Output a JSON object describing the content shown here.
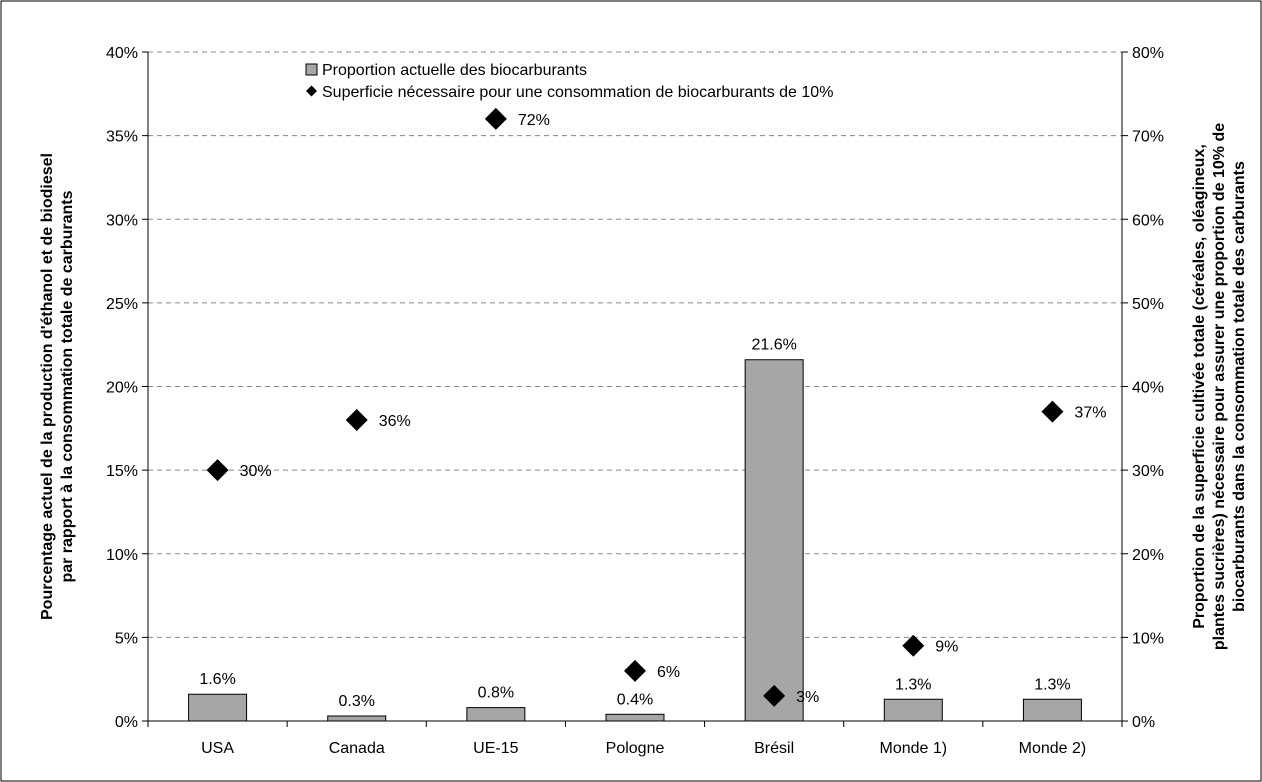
{
  "chart_data": {
    "type": "bar",
    "categories": [
      "USA",
      "Canada",
      "UE-15",
      "Pologne",
      "Brésil",
      "Monde 1)",
      "Monde 2)"
    ],
    "series": [
      {
        "name": "Proportion actuelle des biocarburants",
        "kind": "bar",
        "axis": "left",
        "color": "#a6a6a6",
        "values": [
          1.6,
          0.3,
          0.8,
          0.4,
          21.6,
          1.3,
          1.3
        ],
        "labels": [
          "1.6%",
          "0.3%",
          "0.8%",
          "0.4%",
          "21.6%",
          "1.3%",
          "1.3%"
        ]
      },
      {
        "name": "Superficie nécessaire pour une consommation de biocarburants de 10%",
        "kind": "scatter",
        "marker": "diamond",
        "axis": "right",
        "color": "#000000",
        "values": [
          30,
          36,
          72,
          6,
          3,
          9,
          37
        ],
        "labels": [
          "30%",
          "36%",
          "72%",
          "6%",
          "3%",
          "9%",
          "37%"
        ]
      }
    ],
    "yaxis_left": {
      "range": [
        0,
        40
      ],
      "ticks": [
        0,
        5,
        10,
        15,
        20,
        25,
        30,
        35,
        40
      ],
      "tick_labels": [
        "0%",
        "5%",
        "10%",
        "15%",
        "20%",
        "25%",
        "30%",
        "35%",
        "40%"
      ],
      "title_lines": [
        "Pourcentage actuel de la production d'éthanol et de biodiesel",
        "par rapport à la consommation totale de carburants"
      ]
    },
    "yaxis_right": {
      "range": [
        0,
        80
      ],
      "ticks": [
        0,
        10,
        20,
        30,
        40,
        50,
        60,
        70,
        80
      ],
      "tick_labels": [
        "0%",
        "10%",
        "20%",
        "30%",
        "40%",
        "50%",
        "60%",
        "70%",
        "80%"
      ],
      "title_lines": [
        "Proportion de la superficie cultivée totale (céréales, oléagineux,",
        "plantes sucrières) nécessaire pour assurer une proportion de 10% de",
        "biocarburants dans la consommation totale des carburants"
      ]
    },
    "grid": true,
    "legend": "top-center"
  }
}
